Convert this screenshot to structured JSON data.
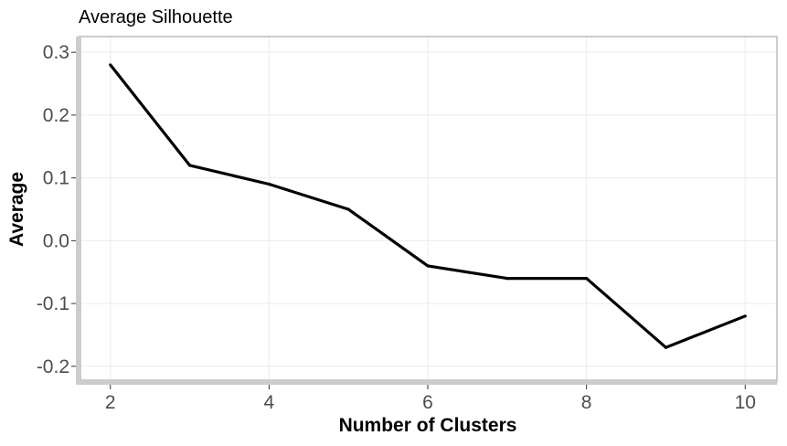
{
  "chart_data": {
    "type": "line",
    "title": "Average Silhouette",
    "xlabel": "Number of Clusters",
    "ylabel": "Average",
    "xlim": [
      1.6,
      10.4
    ],
    "ylim": [
      -0.225,
      0.325
    ],
    "xticks": [
      2,
      4,
      6,
      8,
      10
    ],
    "xtick_labels": [
      "2",
      "4",
      "6",
      "8",
      "10"
    ],
    "yticks": [
      -0.2,
      -0.1,
      0.0,
      0.1,
      0.2,
      0.3
    ],
    "ytick_labels": [
      "-0.2",
      "-0.1",
      "0.0",
      "0.1",
      "0.2",
      "0.3"
    ],
    "grid": true,
    "x": [
      2,
      3,
      4,
      5,
      6,
      7,
      8,
      9,
      10
    ],
    "series": [
      {
        "values": [
          0.28,
          0.12,
          0.09,
          0.05,
          -0.04,
          -0.06,
          -0.06,
          -0.17,
          -0.12
        ]
      }
    ],
    "colors": {
      "line": "#000000",
      "axis": "#cccccc",
      "grid": "#ebebeb",
      "frame": "#999999"
    }
  }
}
